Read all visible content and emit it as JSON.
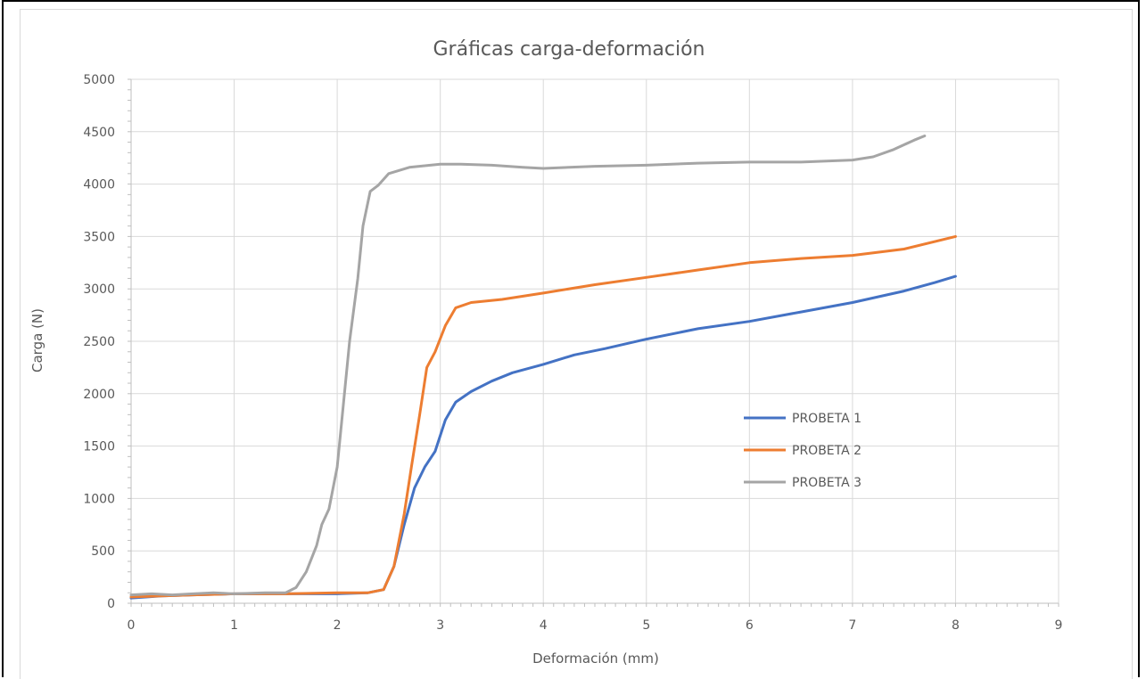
{
  "chart_data": {
    "type": "line",
    "title": "Gráficas carga-deformación",
    "xlabel": "Deformación (mm)",
    "ylabel": "Carga (N)",
    "xlim": [
      0,
      9
    ],
    "ylim": [
      0,
      5000
    ],
    "x_ticks": [
      "0",
      "1",
      "2",
      "3",
      "4",
      "5",
      "6",
      "7",
      "8",
      "9"
    ],
    "y_ticks": [
      "0",
      "500",
      "1000",
      "1500",
      "2000",
      "2500",
      "3000",
      "3500",
      "4000",
      "4500",
      "5000"
    ],
    "grid": true,
    "legend_position": "center-right",
    "series": [
      {
        "name": "PROBETA 1",
        "color": "#4472C4",
        "points": [
          [
            0,
            50
          ],
          [
            0.3,
            70
          ],
          [
            0.6,
            80
          ],
          [
            1.0,
            90
          ],
          [
            1.5,
            90
          ],
          [
            2.0,
            90
          ],
          [
            2.3,
            100
          ],
          [
            2.45,
            130
          ],
          [
            2.55,
            350
          ],
          [
            2.65,
            750
          ],
          [
            2.75,
            1100
          ],
          [
            2.85,
            1300
          ],
          [
            2.95,
            1450
          ],
          [
            3.05,
            1750
          ],
          [
            3.15,
            1920
          ],
          [
            3.3,
            2020
          ],
          [
            3.5,
            2120
          ],
          [
            3.7,
            2200
          ],
          [
            4.0,
            2280
          ],
          [
            4.3,
            2370
          ],
          [
            4.6,
            2430
          ],
          [
            5.0,
            2520
          ],
          [
            5.5,
            2620
          ],
          [
            6.0,
            2690
          ],
          [
            6.5,
            2780
          ],
          [
            7.0,
            2870
          ],
          [
            7.5,
            2980
          ],
          [
            7.8,
            3060
          ],
          [
            8.0,
            3120
          ]
        ]
      },
      {
        "name": "PROBETA 2",
        "color": "#ED7D31",
        "points": [
          [
            0,
            60
          ],
          [
            0.3,
            70
          ],
          [
            0.6,
            80
          ],
          [
            1.0,
            90
          ],
          [
            1.5,
            90
          ],
          [
            2.0,
            100
          ],
          [
            2.3,
            100
          ],
          [
            2.45,
            130
          ],
          [
            2.55,
            350
          ],
          [
            2.65,
            850
          ],
          [
            2.72,
            1300
          ],
          [
            2.8,
            1800
          ],
          [
            2.87,
            2250
          ],
          [
            2.95,
            2400
          ],
          [
            3.05,
            2650
          ],
          [
            3.15,
            2820
          ],
          [
            3.3,
            2870
          ],
          [
            3.6,
            2900
          ],
          [
            4.0,
            2960
          ],
          [
            4.5,
            3040
          ],
          [
            5.0,
            3110
          ],
          [
            5.5,
            3180
          ],
          [
            6.0,
            3250
          ],
          [
            6.5,
            3290
          ],
          [
            7.0,
            3320
          ],
          [
            7.5,
            3380
          ],
          [
            8.0,
            3500
          ]
        ]
      },
      {
        "name": "PROBETA 3",
        "color": "#A5A5A5",
        "points": [
          [
            0,
            80
          ],
          [
            0.2,
            90
          ],
          [
            0.4,
            80
          ],
          [
            0.6,
            90
          ],
          [
            0.8,
            100
          ],
          [
            1.0,
            90
          ],
          [
            1.3,
            100
          ],
          [
            1.5,
            100
          ],
          [
            1.6,
            150
          ],
          [
            1.7,
            300
          ],
          [
            1.8,
            550
          ],
          [
            1.85,
            750
          ],
          [
            1.92,
            900
          ],
          [
            2.0,
            1300
          ],
          [
            2.05,
            1800
          ],
          [
            2.12,
            2500
          ],
          [
            2.2,
            3100
          ],
          [
            2.25,
            3600
          ],
          [
            2.32,
            3930
          ],
          [
            2.4,
            3990
          ],
          [
            2.5,
            4100
          ],
          [
            2.7,
            4160
          ],
          [
            3.0,
            4190
          ],
          [
            3.2,
            4190
          ],
          [
            3.5,
            4180
          ],
          [
            3.8,
            4160
          ],
          [
            4.0,
            4150
          ],
          [
            4.5,
            4170
          ],
          [
            5.0,
            4180
          ],
          [
            5.5,
            4200
          ],
          [
            6.0,
            4210
          ],
          [
            6.5,
            4210
          ],
          [
            7.0,
            4230
          ],
          [
            7.2,
            4260
          ],
          [
            7.4,
            4330
          ],
          [
            7.6,
            4420
          ],
          [
            7.7,
            4460
          ]
        ]
      }
    ]
  }
}
